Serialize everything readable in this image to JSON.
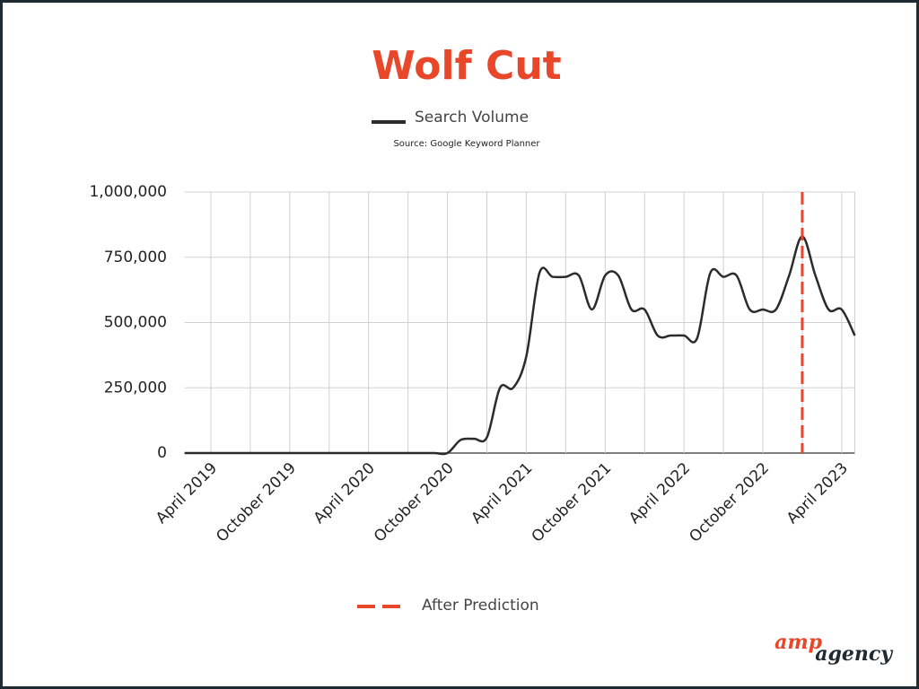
{
  "chart_data": {
    "type": "line",
    "title": "Wolf Cut",
    "subtitle": "Source: Google Keyword Planner",
    "categories": [
      null,
      null,
      "April 2019",
      null,
      null,
      null,
      null,
      null,
      "October 2019",
      null,
      null,
      null,
      null,
      null,
      "April 2020",
      null,
      null,
      null,
      null,
      null,
      "October 2020",
      null,
      null,
      null,
      null,
      null,
      "April 2021",
      null,
      null,
      null,
      null,
      null,
      "October 2021",
      null,
      null,
      null,
      null,
      null,
      "April 2022",
      null,
      null,
      null,
      null,
      null,
      "October 2022",
      null,
      null,
      null,
      null,
      null,
      "April 2023",
      null
    ],
    "series": [
      {
        "name": "Search Volume",
        "color": "#2b2b2b",
        "values": [
          0,
          0,
          0,
          0,
          0,
          0,
          0,
          0,
          0,
          0,
          0,
          0,
          0,
          0,
          0,
          0,
          0,
          0,
          0,
          0,
          0,
          50000,
          55000,
          60000,
          250000,
          250000,
          370000,
          690000,
          675000,
          675000,
          680000,
          550000,
          680000,
          680000,
          550000,
          550000,
          450000,
          450000,
          450000,
          440000,
          690000,
          675000,
          680000,
          550000,
          550000,
          550000,
          680000,
          830000,
          680000,
          550000,
          550000,
          450000
        ]
      }
    ],
    "vline": {
      "name": "After Prediction",
      "color": "#e8472a",
      "at": 47
    },
    "ylim": [
      0,
      1000000
    ],
    "yticks": [
      0,
      {
        "value": 250000,
        "label": "250,000"
      },
      {
        "value": 500000,
        "label": "500,000"
      },
      {
        "value": 750000,
        "label": "750,000"
      },
      {
        "value": 1000000,
        "label": "1,000,000"
      }
    ],
    "grid": true,
    "logo": {
      "part1": "amp",
      "part2": "agency"
    }
  }
}
